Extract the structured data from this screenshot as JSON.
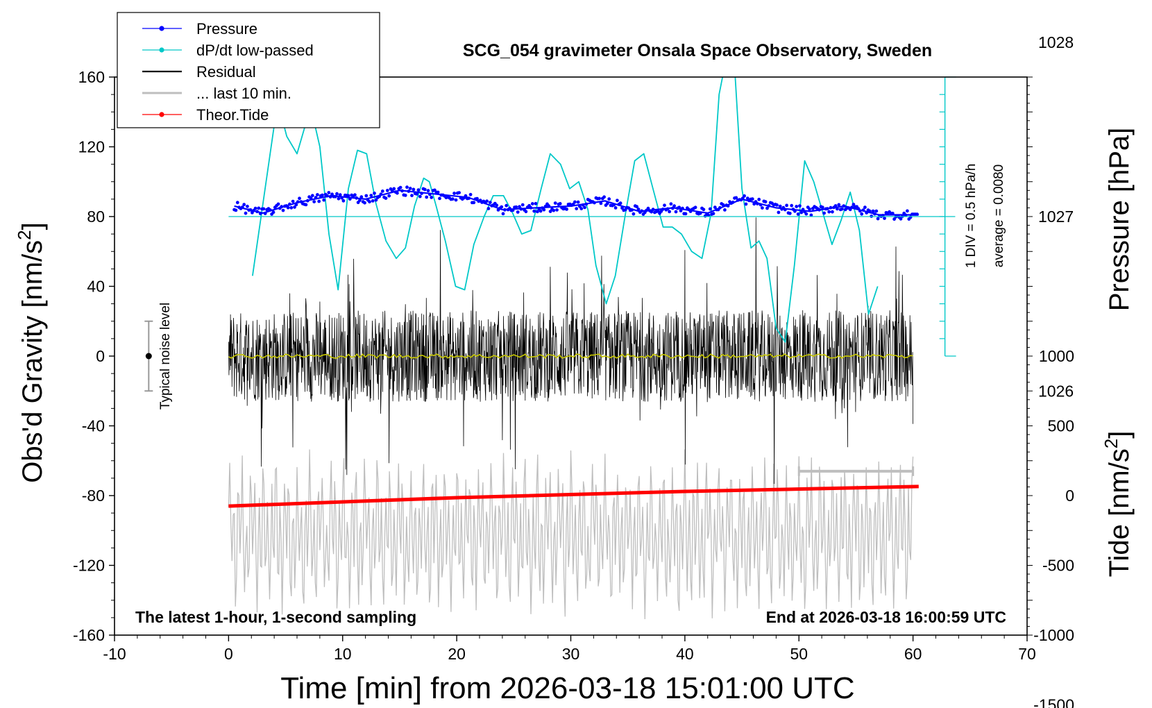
{
  "chart_data": {
    "type": "line",
    "title": "SCG_054 gravimeter Onsala Space Observatory, Sweden",
    "xlabel": "Time [min] from 2026-03-18 15:01:00 UTC",
    "ylabel_left_main": "Obs'd Gravity [nm/s",
    "ylabel_left_sup": "2",
    "ylabel_left_close": "]",
    "ylabel_right_pressure": "Pressure [hPa]",
    "ylabel_right_tide_main": "Tide [nm/s",
    "ylabel_right_tide_sup": "2",
    "ylabel_right_tide_close": "]",
    "xlim": [
      -10,
      70
    ],
    "ylim": [
      -160,
      160
    ],
    "x_ticks": [
      "-10",
      "0",
      "10",
      "20",
      "30",
      "40",
      "50",
      "60",
      "70"
    ],
    "y_ticks": [
      "160",
      "120",
      "80",
      "40",
      "0",
      "-40",
      "-80",
      "-120",
      "-160"
    ],
    "pressure_ticks": [
      "1028",
      "1027",
      "1026"
    ],
    "tide_ticks": [
      "1000",
      "500",
      "0",
      "-500",
      "-1000",
      "-1500"
    ],
    "pressure_ref_hpa": 1027,
    "pressure_scale_div": "1 DIV = 0.5 hPa/h",
    "pressure_average": "average = 0.0080",
    "noise_label": "Typical noise level",
    "noise_bar": [
      -20,
      20
    ],
    "footer_left": "The latest 1-hour, 1-second sampling",
    "footer_right": "End at 2026-03-18 16:00:59 UTC",
    "legend": [
      {
        "name": "Pressure",
        "color": "#0000ff",
        "marker": true
      },
      {
        "name": "dP/dt low-passed",
        "color": "#00c8c8",
        "marker": true
      },
      {
        "name": "Residual",
        "color": "#000000",
        "marker": false
      },
      {
        "name": "... last 10 min.",
        "color": "#bebebe",
        "marker": false
      },
      {
        "name": "Theor.Tide",
        "color": "#ff0000",
        "marker": true
      }
    ],
    "last10_span": [
      50,
      60
    ],
    "series": [
      {
        "name": "dP/dt low-passed",
        "color": "#00c8c8",
        "x": [
          2.1,
          3.2,
          4.3,
          5.1,
          6.0,
          7.2,
          8.0,
          8.8,
          9.6,
          10.5,
          11.3,
          12.1,
          12.9,
          13.8,
          14.7,
          15.5,
          16.3,
          17.1,
          17.6,
          18.2,
          19.0,
          19.9,
          20.7,
          21.5,
          22.4,
          23.2,
          24.1,
          24.9,
          25.7,
          26.5,
          27.4,
          28.2,
          29.1,
          29.9,
          30.7,
          31.5,
          32.2,
          33.1,
          33.9,
          34.8,
          35.6,
          36.4,
          37.2,
          38.1,
          38.9,
          39.7,
          40.6,
          41.5,
          42.3,
          43.0,
          43.6,
          44.3,
          45.0,
          45.8,
          46.5,
          47.2,
          48.0,
          48.8,
          49.6,
          50.5,
          51.3,
          52.1,
          52.9,
          53.7,
          54.5,
          55.3,
          56.1,
          56.9
        ],
        "y": [
          46,
          96,
          146,
          126,
          116,
          143,
          120,
          70,
          38,
          96,
          118,
          116,
          88,
          66,
          56,
          62,
          86,
          102,
          100,
          86,
          66,
          40,
          38,
          64,
          80,
          92,
          92,
          82,
          70,
          72,
          96,
          116,
          110,
          96,
          100,
          84,
          52,
          30,
          46,
          82,
          112,
          116,
          96,
          74,
          74,
          70,
          60,
          56,
          82,
          150,
          170,
          172,
          96,
          62,
          66,
          56,
          16,
          8,
          52,
          112,
          100,
          82,
          64,
          78,
          94,
          72,
          24,
          40
        ]
      },
      {
        "name": "Pressure",
        "color": "#0000ff",
        "unit": "hPa",
        "x": [
          0.5,
          3,
          6,
          9,
          12,
          15,
          18,
          21,
          24,
          27,
          30,
          33,
          36,
          39,
          42,
          45,
          48,
          51,
          54,
          57,
          60.5
        ],
        "y": [
          1027.06,
          1027.02,
          1027.08,
          1027.12,
          1027.1,
          1027.15,
          1027.13,
          1027.11,
          1027.04,
          1027.05,
          1027.06,
          1027.09,
          1027.03,
          1027.05,
          1027.02,
          1027.1,
          1027.05,
          1027.03,
          1027.06,
          1027.01,
          1027.01
        ]
      },
      {
        "name": "Residual",
        "color": "#000000",
        "x_range": [
          0,
          60
        ],
        "envelope_nm_s2": [
          -35,
          35
        ]
      },
      {
        "name": "Theor.Tide",
        "color": "#ff0000",
        "unit": "nm/s2",
        "x": [
          0,
          20,
          40,
          60.5
        ],
        "y": [
          -75,
          -15,
          30,
          65
        ]
      },
      {
        "name": "... last 10 min.",
        "color": "#bebebe",
        "x_range": [
          0,
          60
        ],
        "y_range_nm_s2": [
          -155,
          -50
        ]
      },
      {
        "name": "Residual mean",
        "color": "#c8c800",
        "x_range": [
          0,
          60
        ],
        "level": 0
      }
    ]
  }
}
